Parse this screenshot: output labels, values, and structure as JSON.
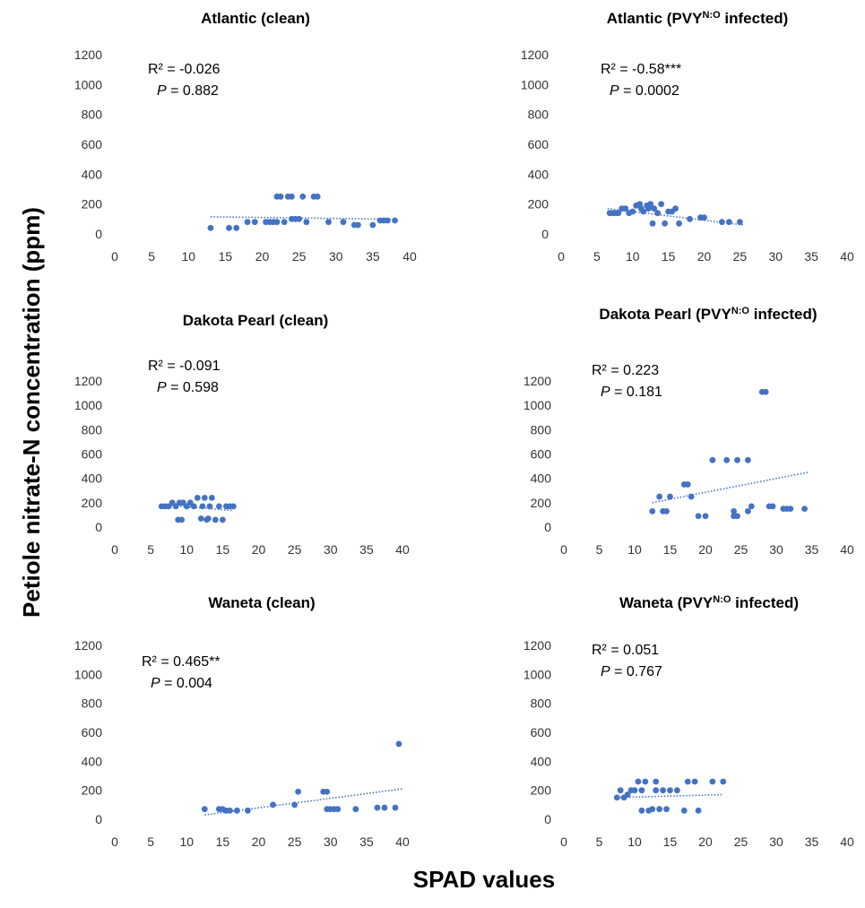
{
  "figure": {
    "xlabel": "SPAD values",
    "ylabel": "Petiole nitrate-N concentration (ppm)",
    "colors": {
      "points": "#4472C4",
      "trendline": "#4472C4",
      "text": "#000000"
    }
  },
  "chart_data": [
    {
      "type": "scatter",
      "title": "Atlantic (clean)",
      "title_parts": {
        "main": "Atlantic (clean)",
        "sup": "",
        "tail": ""
      },
      "stats": {
        "r2": "R² = -0.026",
        "p_label": "P",
        "p_value": " = 0.882"
      },
      "xlim": [
        0,
        40
      ],
      "ylim": [
        0,
        1200
      ],
      "xticks": [
        0,
        5,
        10,
        15,
        20,
        25,
        30,
        35,
        40
      ],
      "yticks": [
        0,
        200,
        400,
        600,
        800,
        1000,
        1200
      ],
      "trendline": {
        "style": "dotted",
        "x": [
          13,
          38
        ],
        "y": [
          115,
          98
        ]
      },
      "x": [
        13,
        15.5,
        16.5,
        18,
        19,
        20.5,
        21,
        21.5,
        22,
        22,
        22.5,
        23,
        23.5,
        24,
        24,
        24.5,
        25,
        25.5,
        26,
        27,
        27.5,
        29,
        31,
        32.5,
        33,
        35,
        36,
        36.5,
        37,
        38
      ],
      "y": [
        40,
        40,
        40,
        80,
        80,
        80,
        80,
        80,
        80,
        250,
        250,
        80,
        250,
        250,
        100,
        100,
        100,
        250,
        80,
        250,
        250,
        80,
        80,
        60,
        60,
        60,
        90,
        90,
        90,
        90
      ]
    },
    {
      "type": "scatter",
      "title": "Atlantic (PVYN:O infected)",
      "title_parts": {
        "main": "Atlantic (PVY",
        "sup": "N:O",
        "tail": " infected)"
      },
      "stats": {
        "r2": "R² = -0.58***",
        "p_label": "P",
        "p_value": " = 0.0002"
      },
      "xlim": [
        0,
        40
      ],
      "ylim": [
        0,
        1200
      ],
      "xticks": [
        0,
        5,
        10,
        15,
        20,
        25,
        30,
        35,
        40
      ],
      "yticks": [
        0,
        200,
        400,
        600,
        800,
        1000,
        1200
      ],
      "trendline": {
        "style": "dotted",
        "x": [
          6.5,
          25.5
        ],
        "y": [
          170,
          60
        ]
      },
      "x": [
        6.8,
        7.2,
        7.6,
        8,
        8.5,
        9,
        9.5,
        10,
        10.5,
        11,
        11.2,
        11.5,
        12,
        12.2,
        12.5,
        12.8,
        13,
        13.5,
        14,
        14.5,
        15,
        15.5,
        16,
        16.5,
        18,
        19.5,
        20,
        22.5,
        23.5,
        25
      ],
      "y": [
        140,
        140,
        140,
        140,
        170,
        170,
        140,
        150,
        190,
        200,
        170,
        150,
        190,
        170,
        200,
        70,
        170,
        140,
        200,
        70,
        150,
        150,
        170,
        70,
        100,
        110,
        110,
        80,
        80,
        80
      ]
    },
    {
      "type": "scatter",
      "title": "Dakota Pearl (clean)",
      "title_parts": {
        "main": "Dakota Pearl (clean)",
        "sup": "",
        "tail": ""
      },
      "stats": {
        "r2": "R² = -0.091",
        "p_label": "P",
        "p_value": " = 0.598"
      },
      "xlim": [
        0,
        40
      ],
      "ylim": [
        0,
        1200
      ],
      "xticks": [
        0,
        5,
        10,
        15,
        20,
        25,
        30,
        35,
        40
      ],
      "yticks": [
        0,
        200,
        400,
        600,
        800,
        1000,
        1200
      ],
      "trendline": {
        "style": "dotted",
        "x": [
          6.5,
          16.5
        ],
        "y": [
          185,
          135
        ]
      },
      "x": [
        6.5,
        7,
        7.5,
        8,
        8.5,
        8.8,
        9,
        9.3,
        9.5,
        10,
        10.5,
        11,
        11.5,
        12,
        12.2,
        12.5,
        12.8,
        13,
        13.2,
        13.5,
        14,
        14.5,
        15,
        15.5,
        16,
        16.5
      ],
      "y": [
        170,
        170,
        170,
        200,
        170,
        60,
        200,
        60,
        200,
        170,
        200,
        170,
        240,
        70,
        170,
        240,
        60,
        70,
        170,
        240,
        60,
        170,
        60,
        170,
        170,
        170
      ]
    },
    {
      "type": "scatter",
      "title": "Dakota Pearl (PVYN:O infected)",
      "title_parts": {
        "main": "Dakota Pearl (PVY",
        "sup": "N:O",
        "tail": " infected)"
      },
      "stats": {
        "r2": "R² = 0.223",
        "p_label": "P",
        "p_value": " = 0.181"
      },
      "xlim": [
        0,
        40
      ],
      "ylim": [
        0,
        1200
      ],
      "xticks": [
        0,
        5,
        10,
        15,
        20,
        25,
        30,
        35,
        40
      ],
      "yticks": [
        0,
        200,
        400,
        600,
        800,
        1000,
        1200
      ],
      "trendline": {
        "style": "dotted",
        "x": [
          12.5,
          34.5
        ],
        "y": [
          200,
          450
        ]
      },
      "x": [
        12.5,
        13.5,
        14,
        14.5,
        15,
        17,
        17.5,
        18,
        19,
        20,
        21,
        23,
        24,
        24,
        24.5,
        24.5,
        26,
        26,
        26.5,
        28,
        28.5,
        29,
        29.5,
        31,
        31.5,
        32,
        34
      ],
      "y": [
        130,
        250,
        130,
        130,
        250,
        350,
        350,
        250,
        90,
        90,
        550,
        550,
        130,
        90,
        550,
        90,
        550,
        130,
        170,
        1110,
        1110,
        170,
        170,
        150,
        150,
        150,
        150
      ]
    },
    {
      "type": "scatter",
      "title": "Waneta (clean)",
      "title_parts": {
        "main": "Waneta (clean)",
        "sup": "",
        "tail": ""
      },
      "stats": {
        "r2": "R² = 0.465**",
        "p_label": "P",
        "p_value": " = 0.004"
      },
      "xlim": [
        0,
        40
      ],
      "ylim": [
        0,
        1200
      ],
      "xticks": [
        0,
        5,
        10,
        15,
        20,
        25,
        30,
        35,
        40
      ],
      "yticks": [
        0,
        200,
        400,
        600,
        800,
        1000,
        1200
      ],
      "trendline": {
        "style": "dotted",
        "x": [
          12.5,
          40
        ],
        "y": [
          30,
          210
        ]
      },
      "x": [
        12.5,
        14.5,
        15,
        15.5,
        16,
        17,
        18.5,
        22,
        25,
        25.5,
        29,
        29.5,
        29.5,
        30,
        30.5,
        31,
        33.5,
        36.5,
        37.5,
        39,
        39.5
      ],
      "y": [
        70,
        70,
        70,
        60,
        60,
        60,
        60,
        100,
        100,
        190,
        190,
        190,
        70,
        70,
        70,
        70,
        70,
        80,
        80,
        80,
        520
      ]
    },
    {
      "type": "scatter",
      "title": "Waneta (PVYN:O infected)",
      "title_parts": {
        "main": "Waneta (PVY",
        "sup": "N:O",
        "tail": " infected)"
      },
      "stats": {
        "r2": "R² = 0.051",
        "p_label": "P",
        "p_value": " = 0.767"
      },
      "xlim": [
        0,
        40
      ],
      "ylim": [
        0,
        1200
      ],
      "xticks": [
        0,
        5,
        10,
        15,
        20,
        25,
        30,
        35,
        40
      ],
      "yticks": [
        0,
        200,
        400,
        600,
        800,
        1000,
        1200
      ],
      "trendline": {
        "style": "dotted",
        "x": [
          7.5,
          22.5
        ],
        "y": [
          150,
          170
        ]
      },
      "x": [
        7.5,
        8,
        8.5,
        9,
        9.5,
        10,
        10.5,
        11,
        11,
        11.5,
        12,
        12.5,
        13,
        13,
        13.5,
        14,
        14.5,
        15,
        16,
        17,
        17.5,
        18.5,
        19,
        21,
        22.5
      ],
      "y": [
        150,
        200,
        150,
        170,
        200,
        200,
        260,
        60,
        200,
        260,
        60,
        70,
        200,
        260,
        70,
        200,
        70,
        200,
        200,
        60,
        260,
        260,
        60,
        260,
        260
      ]
    }
  ]
}
